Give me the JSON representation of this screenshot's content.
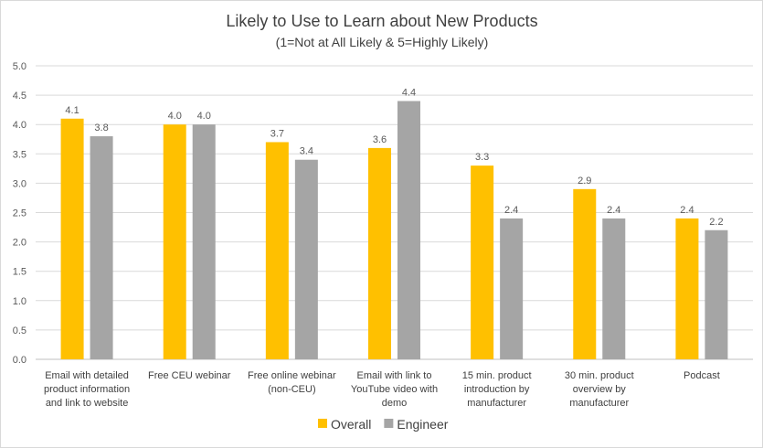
{
  "chart_data": {
    "type": "bar",
    "title": "Likely to Use to Learn about New Products",
    "subtitle": "(1=Not at All Likely & 5=Highly Likely)",
    "xlabel": "",
    "ylabel": "",
    "ylim": [
      0,
      5
    ],
    "yticks": [
      "0.0",
      "0.5",
      "1.0",
      "1.5",
      "2.0",
      "2.5",
      "3.0",
      "3.5",
      "4.0",
      "4.5",
      "5.0"
    ],
    "grid": true,
    "legend_position": "bottom",
    "categories": [
      [
        "Email with detailed",
        "product information",
        "and link to website"
      ],
      [
        "Free CEU webinar"
      ],
      [
        "Free online webinar",
        "(non-CEU)"
      ],
      [
        "Email with link to",
        "YouTube video with",
        "demo"
      ],
      [
        "15 min. product",
        "introduction by",
        "manufacturer"
      ],
      [
        "30 min. product",
        "overview by",
        "manufacturer"
      ],
      [
        "Podcast"
      ]
    ],
    "series": [
      {
        "name": "Overall",
        "color": "#FFC000",
        "values": [
          4.1,
          4.0,
          3.7,
          3.6,
          3.3,
          2.9,
          2.4
        ],
        "labels": [
          "4.1",
          "4.0",
          "3.7",
          "3.6",
          "3.3",
          "2.9",
          "2.4"
        ]
      },
      {
        "name": "Engineer",
        "color": "#A5A5A5",
        "values": [
          3.8,
          4.0,
          3.4,
          4.4,
          2.4,
          2.4,
          2.2
        ],
        "labels": [
          "3.8",
          "4.0",
          "3.4",
          "4.4",
          "2.4",
          "2.4",
          "2.2"
        ]
      }
    ]
  }
}
